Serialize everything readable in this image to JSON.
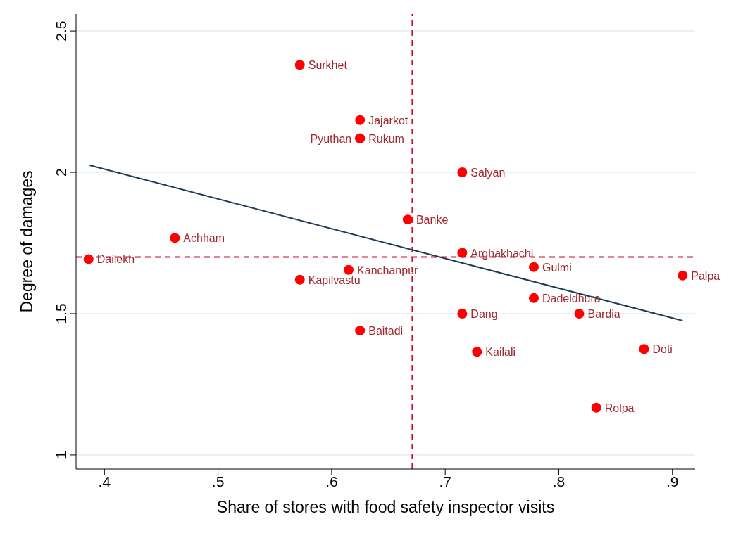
{
  "chart_data": {
    "type": "scatter",
    "xlabel": "Share of stores with food safety inspector visits",
    "ylabel": "Degree of damages",
    "xlim": [
      0.375,
      0.92
    ],
    "ylim": [
      0.95,
      2.56
    ],
    "xticks": [
      {
        "value": 0.4,
        "label": ".4"
      },
      {
        "value": 0.5,
        "label": ".5"
      },
      {
        "value": 0.6,
        "label": ".6"
      },
      {
        "value": 0.7,
        "label": ".7"
      },
      {
        "value": 0.8,
        "label": ".8"
      },
      {
        "value": 0.9,
        "label": ".9"
      }
    ],
    "yticks": [
      1,
      1.5,
      2,
      2.5
    ],
    "grid": "y",
    "legend": false,
    "marker": "circle",
    "series": [
      {
        "color": "#ff0000",
        "x": [
          0.572,
          0.625,
          0.625,
          0.625,
          0.715,
          0.667,
          0.462,
          0.386,
          0.715,
          0.778,
          0.909,
          0.615,
          0.572,
          0.778,
          0.715,
          0.818,
          0.625,
          0.728,
          0.875,
          0.833
        ],
        "values": [
          2.38,
          2.185,
          2.12,
          2.12,
          2.0,
          1.833,
          1.768,
          1.693,
          1.715,
          1.665,
          1.635,
          1.655,
          1.62,
          1.555,
          1.5,
          1.5,
          1.44,
          1.365,
          1.375,
          1.167
        ]
      },
      {
        "type": "line",
        "color": "#1f3b5c",
        "marker": "none",
        "x": [
          0.387,
          0.909
        ],
        "values": [
          2.025,
          1.475
        ]
      }
    ],
    "ref_lines": [
      {
        "axis": "x",
        "value": 0.671,
        "color": "#c8102e",
        "line_style": "dashed"
      },
      {
        "axis": "y",
        "value": 1.7,
        "color": "#c8102e",
        "line_style": "dashed"
      }
    ],
    "annotations": [
      {
        "text": "Surkhet",
        "x": 0.572,
        "y": 2.38
      },
      {
        "text": "Jajarkot",
        "x": 0.625,
        "y": 2.185
      },
      {
        "text": "Rukum",
        "x": 0.625,
        "y": 2.12
      },
      {
        "text": "Pyuthan",
        "x": 0.625,
        "y": 2.12
      },
      {
        "text": "Salyan",
        "x": 0.715,
        "y": 2.0
      },
      {
        "text": "Banke",
        "x": 0.667,
        "y": 1.833
      },
      {
        "text": "Achham",
        "x": 0.462,
        "y": 1.768
      },
      {
        "text": "Dailekh",
        "x": 0.386,
        "y": 1.693
      },
      {
        "text": "Arghakhachi",
        "x": 0.715,
        "y": 1.715
      },
      {
        "text": "Gulmi",
        "x": 0.778,
        "y": 1.665
      },
      {
        "text": "Palpa",
        "x": 0.909,
        "y": 1.635
      },
      {
        "text": "Kanchanpur",
        "x": 0.615,
        "y": 1.655
      },
      {
        "text": "Kapilvastu",
        "x": 0.572,
        "y": 1.62
      },
      {
        "text": "Dadeldhura",
        "x": 0.778,
        "y": 1.555
      },
      {
        "text": "Dang",
        "x": 0.715,
        "y": 1.5
      },
      {
        "text": "Bardia",
        "x": 0.818,
        "y": 1.5
      },
      {
        "text": "Baitadi",
        "x": 0.625,
        "y": 1.44
      },
      {
        "text": "Kailali",
        "x": 0.728,
        "y": 1.365
      },
      {
        "text": "Doti",
        "x": 0.875,
        "y": 1.375
      },
      {
        "text": "Rolpa",
        "x": 0.833,
        "y": 1.167
      }
    ]
  }
}
